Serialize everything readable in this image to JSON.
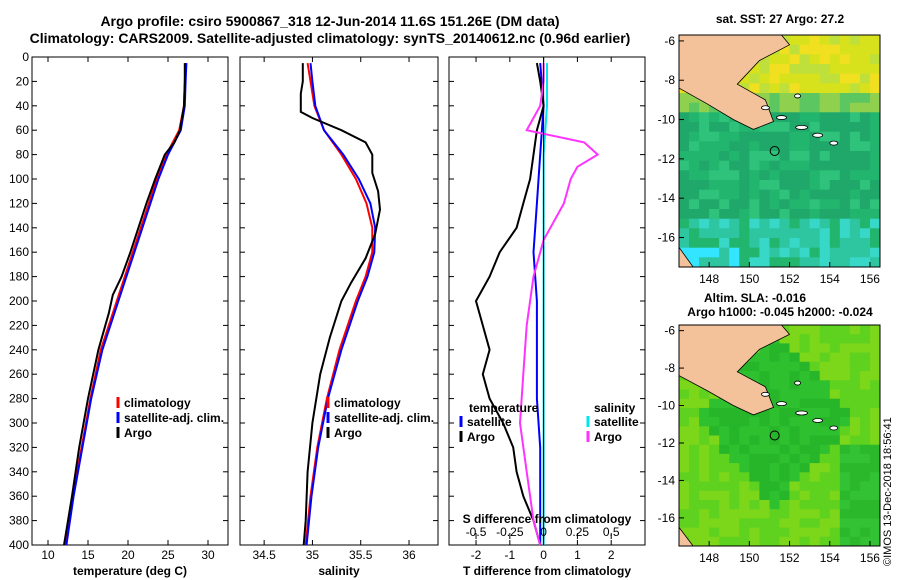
{
  "header": {
    "line1": "Argo profile: csiro 5900867_318 12-Jun-2014 11.6S 151.26E (DM data)",
    "line2": "Climatology: CARS2009. Satellite-adjusted climatology: synTS_20140612.nc (0.96d earlier)"
  },
  "stamp": "©IMOS 13-Dec-2018 18:56:41",
  "colors": {
    "climatology": "#ff0000",
    "satellite": "#0000ff",
    "argo": "#000000",
    "sat_salinity": "#00e5ee",
    "argo_salinity": "#ff33ff",
    "land": "#f4c29a",
    "sst_ocean": "#22bb66",
    "sla_ocean": "#33cc33"
  },
  "chart_data": [
    {
      "type": "line",
      "name": "temperature",
      "xlabel": "temperature (deg C)",
      "ylim": [
        400,
        0
      ],
      "xlim": [
        8,
        32.5
      ],
      "xticks": [
        10,
        15,
        20,
        25,
        30
      ],
      "yticks": [
        0,
        20,
        40,
        60,
        80,
        100,
        120,
        140,
        160,
        180,
        200,
        220,
        240,
        260,
        280,
        300,
        320,
        340,
        360,
        380,
        400
      ],
      "legend": [
        "climatology",
        "satellite-adj. clim.",
        "Argo"
      ],
      "series": [
        {
          "name": "climatology",
          "color": "#ff0000",
          "depth": [
            5,
            20,
            40,
            60,
            80,
            100,
            120,
            140,
            160,
            180,
            200,
            240,
            280,
            320,
            360,
            400
          ],
          "values": [
            27.2,
            27.1,
            27.0,
            26.4,
            24.8,
            23.6,
            22.6,
            21.6,
            20.6,
            19.6,
            18.6,
            16.6,
            15.3,
            14.2,
            13.1,
            12.2
          ]
        },
        {
          "name": "satellite-adj. clim.",
          "color": "#0000ff",
          "depth": [
            5,
            20,
            40,
            60,
            80,
            100,
            120,
            140,
            160,
            180,
            200,
            240,
            280,
            320,
            360,
            400
          ],
          "values": [
            27.3,
            27.2,
            27.1,
            26.6,
            25.0,
            23.8,
            22.8,
            21.8,
            20.8,
            19.8,
            18.8,
            16.8,
            15.4,
            14.3,
            13.2,
            12.3
          ]
        },
        {
          "name": "Argo",
          "color": "#000000",
          "depth": [
            5,
            20,
            40,
            60,
            70,
            80,
            100,
            120,
            140,
            160,
            180,
            195,
            210,
            240,
            280,
            320,
            360,
            400
          ],
          "values": [
            27.1,
            27.1,
            27.0,
            26.5,
            25.8,
            24.6,
            23.4,
            22.3,
            21.3,
            20.3,
            19.2,
            18.1,
            17.6,
            16.3,
            15.0,
            13.9,
            13.0,
            12.0
          ]
        }
      ]
    },
    {
      "type": "line",
      "name": "salinity",
      "xlabel": "salinity",
      "ylim": [
        400,
        0
      ],
      "xlim": [
        34.25,
        36.3
      ],
      "xticks": [
        34.5,
        35,
        35.5,
        36
      ],
      "xtick_labels": [
        "34.5",
        "35",
        "35.5",
        "36"
      ],
      "legend": [
        "climatology",
        "satellite-adj. clim.",
        "Argo"
      ],
      "series": [
        {
          "name": "climatology",
          "color": "#ff0000",
          "depth": [
            5,
            20,
            40,
            60,
            80,
            100,
            120,
            140,
            160,
            180,
            200,
            240,
            280,
            320,
            360,
            400
          ],
          "values": [
            34.95,
            34.98,
            35.02,
            35.12,
            35.3,
            35.45,
            35.56,
            35.62,
            35.62,
            35.55,
            35.45,
            35.28,
            35.15,
            35.05,
            34.98,
            34.93
          ]
        },
        {
          "name": "satellite-adj. clim.",
          "color": "#0000ff",
          "depth": [
            5,
            20,
            40,
            60,
            80,
            100,
            120,
            140,
            160,
            180,
            200,
            240,
            280,
            320,
            360,
            400
          ],
          "values": [
            34.98,
            35.0,
            35.03,
            35.12,
            35.32,
            35.48,
            35.6,
            35.65,
            35.64,
            35.57,
            35.47,
            35.3,
            35.16,
            35.06,
            34.99,
            34.94
          ]
        },
        {
          "name": "Argo",
          "color": "#000000",
          "depth": [
            5,
            20,
            30,
            45,
            50,
            60,
            70,
            80,
            95,
            110,
            125,
            145,
            165,
            185,
            200,
            230,
            260,
            300,
            340,
            380,
            400
          ],
          "values": [
            34.9,
            34.9,
            34.88,
            34.88,
            35.0,
            35.3,
            35.55,
            35.62,
            35.62,
            35.68,
            35.7,
            35.65,
            35.55,
            35.4,
            35.3,
            35.18,
            35.08,
            35.0,
            34.95,
            34.93,
            34.91
          ]
        }
      ]
    },
    {
      "type": "line",
      "name": "difference",
      "xlabel": "T difference from climatology",
      "xlabel2": "S difference from climatology",
      "ylim": [
        400,
        0
      ],
      "xlim": [
        -2.8,
        3.0
      ],
      "xticks": [
        -2,
        -1,
        0,
        1,
        2
      ],
      "top_ticks": [
        -0.5,
        -0.25,
        0,
        0.25,
        0.5
      ],
      "top_tick_labels": [
        "-0.5",
        "-0.25",
        "0",
        "0.25",
        "0.5"
      ],
      "legend_title_left": "temperature",
      "legend_title_right": "salinity",
      "legend_left": [
        "satellite",
        "Argo"
      ],
      "legend_right": [
        "satellite",
        "Argo"
      ],
      "series": [
        {
          "name": "temperature satellite",
          "color": "#0000ff",
          "depth": [
            5,
            40,
            80,
            120,
            160,
            200,
            240,
            280,
            320,
            360,
            400
          ],
          "values": [
            -0.1,
            0.0,
            -0.1,
            -0.2,
            -0.3,
            -0.2,
            -0.2,
            -0.2,
            -0.1,
            -0.1,
            -0.1
          ]
        },
        {
          "name": "temperature Argo",
          "color": "#000000",
          "depth": [
            5,
            20,
            40,
            60,
            80,
            100,
            120,
            140,
            160,
            180,
            200,
            220,
            240,
            260,
            280,
            300,
            320,
            340,
            360,
            380,
            400
          ],
          "values": [
            -0.2,
            -0.1,
            0.0,
            -0.2,
            -0.3,
            -0.4,
            -0.6,
            -0.8,
            -1.3,
            -1.6,
            -2.0,
            -1.8,
            -1.6,
            -1.8,
            -1.6,
            -1.2,
            -0.9,
            -0.8,
            -0.6,
            -0.3,
            -0.1
          ]
        },
        {
          "name": "salinity satellite",
          "color": "#00e5ee",
          "depth": [
            5,
            40,
            80,
            120,
            160,
            200,
            240,
            280,
            320,
            360,
            400
          ],
          "values": [
            0.1,
            0.1,
            0.0,
            0.0,
            0.0,
            0.0,
            0.0,
            0.0,
            0.0,
            0.0,
            0.0
          ]
        },
        {
          "name": "salinity Argo",
          "color": "#ff33ff",
          "depth": [
            5,
            20,
            40,
            60,
            70,
            80,
            90,
            100,
            120,
            150,
            180,
            220,
            260,
            300,
            340,
            380,
            400
          ],
          "values": [
            0.0,
            0.0,
            -0.1,
            -0.5,
            1.2,
            1.6,
            1.0,
            0.8,
            0.6,
            0.0,
            -0.3,
            -0.5,
            -0.6,
            -0.7,
            -0.5,
            -0.3,
            -0.1
          ]
        }
      ]
    },
    {
      "type": "heatmap",
      "name": "sst-map",
      "title": "sat. SST: 27 Argo: 27.2",
      "xticks": [
        148,
        150,
        152,
        154,
        156
      ],
      "yticks": [
        -6,
        -8,
        -10,
        -12,
        -14,
        -16
      ],
      "xlim": [
        146.5,
        156.5
      ],
      "ylim": [
        -17.5,
        -5.7
      ],
      "profile_location": {
        "lon": 151.26,
        "lat": -11.6
      }
    },
    {
      "type": "heatmap",
      "name": "sla-map",
      "title": "Altim. SLA: -0.016",
      "subtitle": "Argo h1000: -0.045 h2000: -0.024",
      "xticks": [
        148,
        150,
        152,
        154,
        156
      ],
      "yticks": [
        -6,
        -8,
        -10,
        -12,
        -14,
        -16
      ],
      "xlim": [
        146.5,
        156.5
      ],
      "ylim": [
        -17.5,
        -5.7
      ],
      "profile_location": {
        "lon": 151.26,
        "lat": -11.6
      }
    }
  ]
}
